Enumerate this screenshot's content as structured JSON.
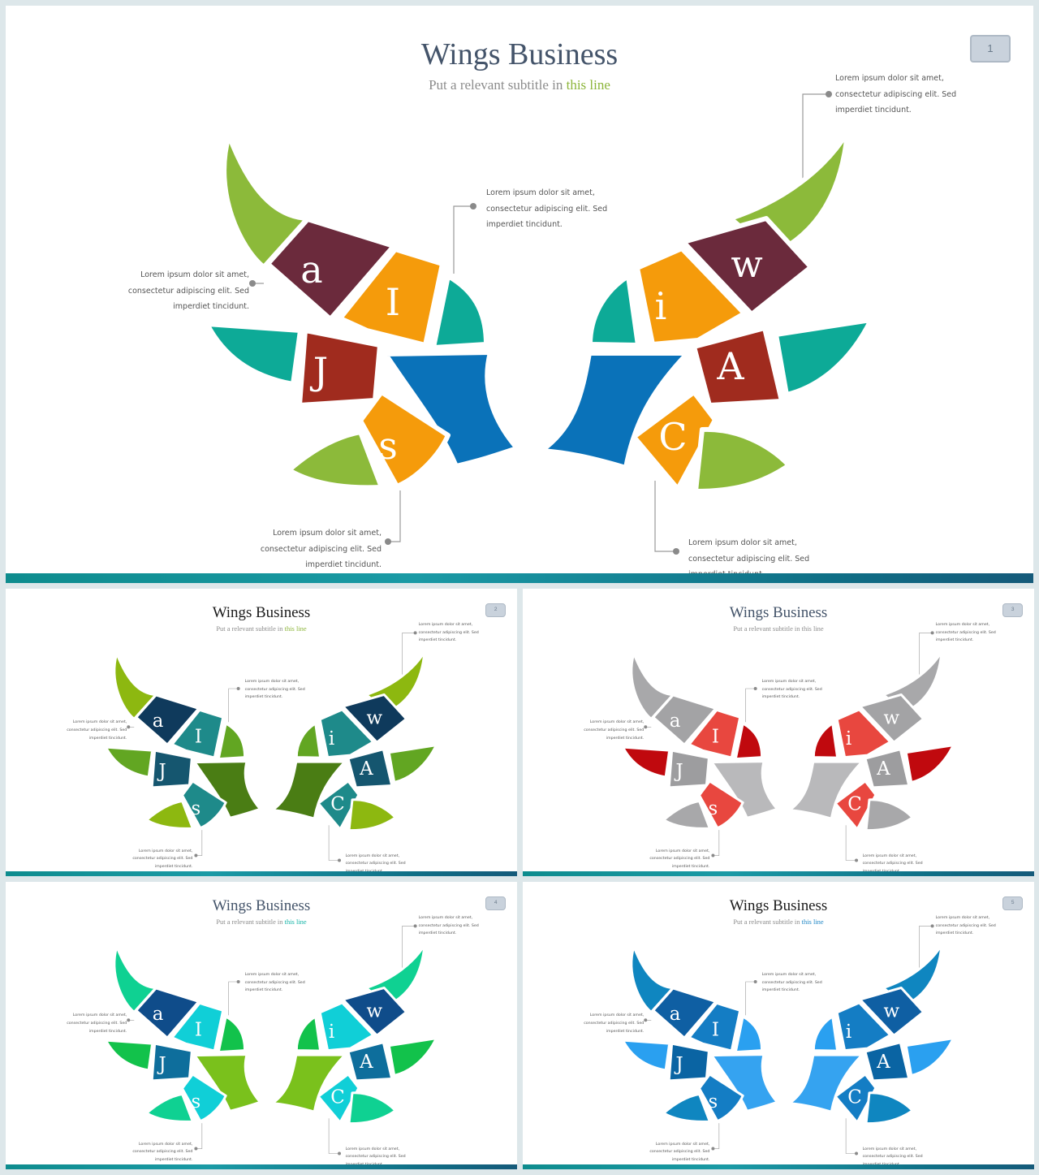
{
  "slides": [
    {
      "title": "Wings Business",
      "subtitle_pre": "Put a relevant subtitle in ",
      "subtitle_hl": "this line",
      "page": "1",
      "palette": {
        "horn": "#8cba3a",
        "dark": "#6b2a3c",
        "mid": "#f59b0b",
        "red": "#a02b1e",
        "teal": "#0daa97",
        "body": "#0a72b9",
        "title": "#44546a",
        "hl": "#8cb53a"
      },
      "letters": {
        "a": "a",
        "I": "I",
        "J": "J",
        "s": "s",
        "w": "w",
        "i": "i",
        "A": "A",
        "C": "C"
      },
      "callouts": [
        "Lorem ipsum dolor sit amet, consectetur adipiscing elit. Sed imperdiet tincidunt.",
        "Lorem ipsum dolor sit amet, consectetur adipiscing elit. Sed imperdiet tincidunt.",
        "Lorem ipsum dolor sit amet, consectetur adipiscing elit. Sed imperdiet tincidunt.",
        "Lorem ipsum dolor sit amet, consectetur adipiscing elit. Sed imperdiet tincidunt.",
        "Lorem ipsum dolor sit amet, consectetur adipiscing elit. Sed imperdiet tincidunt."
      ]
    },
    {
      "title": "Wings Business",
      "subtitle_pre": "Put a relevant subtitle in ",
      "subtitle_hl": "this line",
      "page": "2",
      "palette": {
        "horn": "#8db810",
        "dark": "#0f3a5c",
        "mid": "#1e8a8a",
        "red": "#15566f",
        "teal": "#62a622",
        "body": "#4a7d14",
        "title": "#1b1b1b",
        "hl": "#8cb53a"
      },
      "letters": {
        "a": "a",
        "I": "I",
        "J": "J",
        "s": "s",
        "w": "w",
        "i": "i",
        "A": "A",
        "C": "C"
      },
      "callouts": [
        "Lorem ipsum dolor sit amet, consectetur adipiscing elit. Sed imperdiet tincidunt.",
        "Lorem ipsum dolor sit amet, consectetur adipiscing elit. Sed imperdiet tincidunt.",
        "Lorem ipsum dolor sit amet, consectetur adipiscing elit. Sed imperdiet tincidunt.",
        "Lorem ipsum dolor sit amet, consectetur adipiscing elit. Sed imperdiet tincidunt.",
        "Lorem ipsum dolor sit amet, consectetur adipiscing elit. Sed imperdiet tincidunt."
      ]
    },
    {
      "title": "Wings Business",
      "subtitle_pre": "Put a relevant subtitle in ",
      "subtitle_hl": "this line",
      "page": "3",
      "palette": {
        "horn": "#a8a8aa",
        "dark": "#a3a3a5",
        "mid": "#e8473f",
        "red": "#9d9d9f",
        "teal": "#c0090e",
        "body": "#b9b9bb",
        "title": "#44546a",
        "hl": "#8c8c8c"
      },
      "letters": {
        "a": "a",
        "I": "I",
        "J": "J",
        "s": "s",
        "w": "w",
        "i": "i",
        "A": "A",
        "C": "C"
      },
      "callouts": [
        "Lorem ipsum dolor sit amet, consectetur adipiscing elit. Sed imperdiet tincidunt.",
        "Lorem ipsum dolor sit amet, consectetur adipiscing elit. Sed imperdiet tincidunt.",
        "Lorem ipsum dolor sit amet, consectetur adipiscing elit. Sed imperdiet tincidunt.",
        "Lorem ipsum dolor sit amet, consectetur adipiscing elit. Sed imperdiet tincidunt.",
        "Lorem ipsum dolor sit amet, consectetur adipiscing elit. Sed imperdiet tincidunt."
      ]
    },
    {
      "title": "Wings Business",
      "subtitle_pre": "Put a relevant subtitle in ",
      "subtitle_hl": "this line",
      "page": "4",
      "palette": {
        "horn": "#0fd192",
        "dark": "#0f4c8a",
        "mid": "#10cfd7",
        "red": "#0e6e9c",
        "teal": "#12c24b",
        "body": "#7ac11c",
        "title": "#44546a",
        "hl": "#13b3a6"
      },
      "letters": {
        "a": "a",
        "I": "I",
        "J": "J",
        "s": "s",
        "w": "w",
        "i": "i",
        "A": "A",
        "C": "C"
      },
      "callouts": [
        "Lorem ipsum dolor sit amet, consectetur adipiscing elit. Sed imperdiet tincidunt.",
        "Lorem ipsum dolor sit amet, consectetur adipiscing elit. Sed imperdiet tincidunt.",
        "Lorem ipsum dolor sit amet, consectetur adipiscing elit. Sed imperdiet tincidunt.",
        "Lorem ipsum dolor sit amet, consectetur adipiscing elit. Sed imperdiet tincidunt.",
        "Lorem ipsum dolor sit amet, consectetur adipiscing elit. Sed imperdiet tincidunt."
      ]
    },
    {
      "title": "Wings Business",
      "subtitle_pre": "Put a relevant subtitle in ",
      "subtitle_hl": "this line",
      "page": "5",
      "palette": {
        "horn": "#0f86c0",
        "dark": "#0f5fa3",
        "mid": "#147dc4",
        "red": "#0a64a3",
        "teal": "#2aa0f0",
        "body": "#35a3f0",
        "title": "#1b1b1b",
        "hl": "#1f86c5"
      },
      "letters": {
        "a": "a",
        "I": "I",
        "J": "J",
        "s": "s",
        "w": "w",
        "i": "i",
        "A": "A",
        "C": "C"
      },
      "callouts": [
        "Lorem ipsum dolor sit amet, consectetur adipiscing elit. Sed imperdiet tincidunt.",
        "Lorem ipsum dolor sit amet, consectetur adipiscing elit. Sed imperdiet tincidunt.",
        "Lorem ipsum dolor sit amet, consectetur adipiscing elit. Sed imperdiet tincidunt.",
        "Lorem ipsum dolor sit amet, consectetur adipiscing elit. Sed imperdiet tincidunt.",
        "Lorem ipsum dolor sit amet, consectetur adipiscing elit. Sed imperdiet tincidunt."
      ]
    }
  ]
}
